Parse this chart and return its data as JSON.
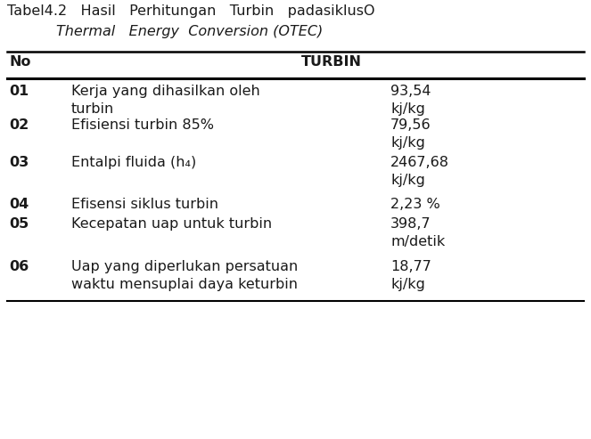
{
  "title_line1": "Tabel4.2   Hasil   Perhitungan   Turbin   padasiklusO",
  "title_line2": "Thermal   Energy  Conversion (OTEC)",
  "header_col1": "No",
  "header_col2": "TURBIN",
  "rows": [
    {
      "no": "01",
      "desc_line1": "Kerja yang dihasilkan oleh",
      "desc_line2": "turbin",
      "val_line1": "93,54",
      "val_line2": "kj/kg"
    },
    {
      "no": "02",
      "desc_line1": "Efisiensi turbin 85%",
      "desc_line2": "",
      "val_line1": "79,56",
      "val_line2": "kj/kg"
    },
    {
      "no": "03",
      "desc_line1": "Entalpi fluida (h₄)",
      "desc_line2": "",
      "val_line1": "2467,68",
      "val_line2": "kj/kg"
    },
    {
      "no": "04",
      "desc_line1": "Efisensi siklus turbin",
      "desc_line2": "",
      "val_line1": "2,23 %",
      "val_line2": ""
    },
    {
      "no": "05",
      "desc_line1": "Kecepatan uap untuk turbin",
      "desc_line2": "",
      "val_line1": "398,7",
      "val_line2": "m/detik"
    },
    {
      "no": "06",
      "desc_line1": "Uap yang diperlukan persatuan",
      "desc_line2": "waktu mensuplai daya keturbin",
      "val_line1": "18,77",
      "val_line2": "kj/kg"
    }
  ],
  "bg_color": "#ffffff",
  "text_color": "#1a1a1a",
  "font_size_title": 11.5,
  "font_size_header": 11.5,
  "font_size_body": 11.5,
  "line_color": "#000000"
}
